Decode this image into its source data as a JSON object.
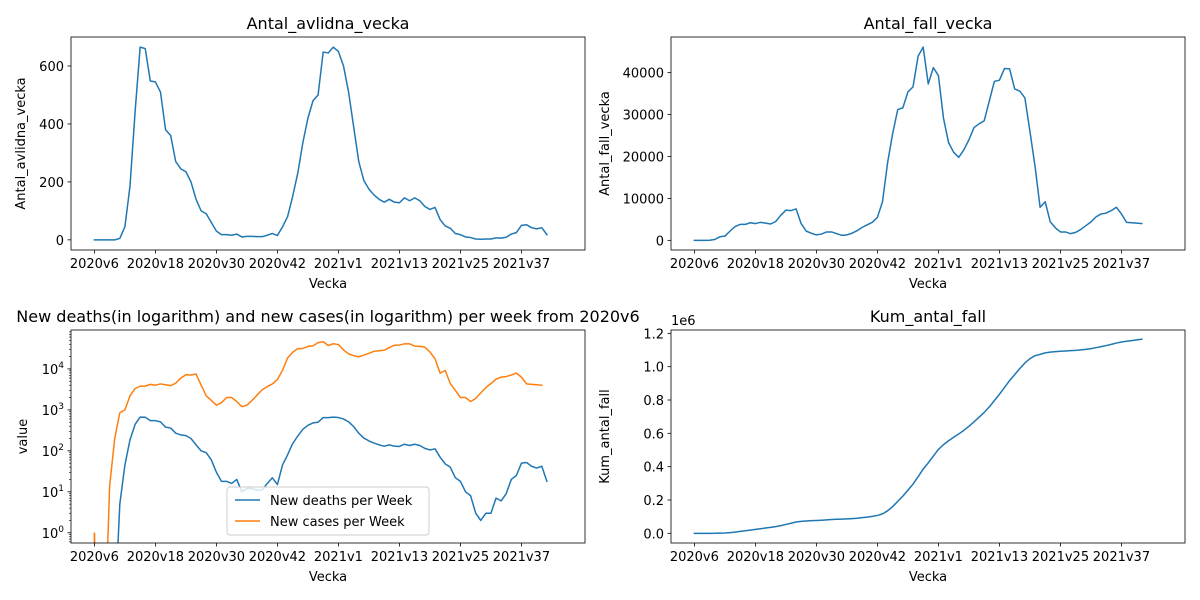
{
  "chart_data": [
    {
      "type": "line",
      "title": "Antal_avlidna_vecka",
      "xlabel": "Vecka",
      "ylabel": "Antal_avlidna_vecka",
      "x_tick_labels": [
        "2020v6",
        "2020v18",
        "2020v30",
        "2020v42",
        "2021v1",
        "2021v13",
        "2021v25",
        "2021v37"
      ],
      "x_ticks": [
        0,
        12,
        24,
        36,
        48,
        60,
        72,
        84
      ],
      "xlim": [
        -4.6,
        96.5
      ],
      "ylim": [
        -35,
        700
      ],
      "y_ticks": [
        0,
        200,
        400,
        600
      ],
      "y_tick_labels": [
        "0",
        "200",
        "400",
        "600"
      ],
      "log_y": false,
      "grid": false,
      "series": [
        {
          "color": "#1f77b4",
          "values": [
            0,
            0,
            0,
            0,
            0,
            5,
            45,
            185,
            440,
            665,
            660,
            548,
            545,
            510,
            380,
            360,
            270,
            245,
            235,
            200,
            140,
            100,
            90,
            60,
            30,
            18,
            18,
            16,
            20,
            10,
            12,
            12,
            11,
            11,
            16,
            22,
            15,
            45,
            80,
            150,
            230,
            335,
            420,
            480,
            500,
            648,
            645,
            665,
            650,
            600,
            510,
            390,
            270,
            205,
            175,
            155,
            140,
            130,
            140,
            130,
            128,
            145,
            135,
            145,
            135,
            115,
            105,
            112,
            70,
            48,
            40,
            22,
            18,
            10,
            8,
            3,
            2,
            3,
            3,
            7,
            6,
            9,
            20,
            25,
            50,
            52,
            42,
            38,
            42,
            18
          ]
        }
      ]
    },
    {
      "type": "line",
      "title": "Antal_fall_vecka",
      "xlabel": "Vecka",
      "ylabel": "Antal_fall_vecka",
      "x_tick_labels": [
        "2020v6",
        "2020v18",
        "2020v30",
        "2020v42",
        "2021v1",
        "2021v13",
        "2021v25",
        "2021v37"
      ],
      "x_ticks": [
        0,
        12,
        24,
        36,
        48,
        60,
        72,
        84
      ],
      "xlim": [
        -4.6,
        96.5
      ],
      "ylim": [
        -2300,
        48500
      ],
      "y_ticks": [
        0,
        10000,
        20000,
        30000,
        40000
      ],
      "y_tick_labels": [
        "0",
        "10000",
        "20000",
        "30000",
        "40000"
      ],
      "log_y": false,
      "grid": false,
      "series": [
        {
          "color": "#1f77b4",
          "values": [
            1,
            0,
            0,
            14,
            200,
            850,
            1000,
            2200,
            3300,
            3800,
            3800,
            4200,
            4000,
            4300,
            4100,
            3900,
            4500,
            6000,
            7200,
            7100,
            7500,
            4000,
            2200,
            1700,
            1300,
            1500,
            2000,
            2000,
            1600,
            1200,
            1300,
            1700,
            2300,
            3100,
            3700,
            4300,
            5500,
            9200,
            18500,
            25500,
            31200,
            31600,
            35400,
            36600,
            43900,
            46100,
            37300,
            41200,
            39300,
            29100,
            23300,
            21000,
            19800,
            21600,
            24000,
            26900,
            27800,
            28500,
            33200,
            37900,
            38200,
            41000,
            40900,
            36100,
            35600,
            34000,
            26000,
            17700,
            7900,
            9200,
            4400,
            3000,
            2000,
            2000,
            1600,
            1900,
            2600,
            3500,
            4400,
            5600,
            6300,
            6500,
            7100,
            7900,
            6300,
            4300,
            4200,
            4100,
            4000
          ]
        }
      ]
    },
    {
      "type": "line",
      "title": "New deaths(in logarithm) and new cases(in logarithm) per week from 2020v6",
      "xlabel": "Vecka",
      "ylabel": "value",
      "x_tick_labels": [
        "2020v6",
        "2020v18",
        "2020v30",
        "2020v42",
        "2021v1",
        "2021v13",
        "2021v25",
        "2021v37"
      ],
      "x_ticks": [
        0,
        12,
        24,
        36,
        48,
        60,
        72,
        84
      ],
      "xlim": [
        -4.6,
        96.5
      ],
      "ylim_log10": [
        -0.25,
        4.95
      ],
      "y_ticks_log10": [
        0,
        1,
        2,
        3,
        4
      ],
      "y_tick_labels": [
        "10^0",
        "10^1",
        "10^2",
        "10^3",
        "10^4"
      ],
      "log_y": true,
      "grid": false,
      "legend": "lower-center",
      "series": [
        {
          "name": "New deaths per Week",
          "color": "#1f77b4",
          "values": [
            0,
            0,
            0,
            0,
            0,
            5,
            45,
            185,
            440,
            665,
            660,
            548,
            545,
            510,
            380,
            360,
            270,
            245,
            235,
            200,
            140,
            100,
            90,
            60,
            30,
            18,
            18,
            16,
            20,
            10,
            12,
            12,
            11,
            11,
            16,
            22,
            15,
            45,
            80,
            150,
            230,
            335,
            420,
            480,
            500,
            648,
            645,
            665,
            650,
            600,
            510,
            390,
            270,
            205,
            175,
            155,
            140,
            130,
            140,
            130,
            128,
            145,
            135,
            145,
            135,
            115,
            105,
            112,
            70,
            48,
            40,
            22,
            18,
            10,
            8,
            3,
            2,
            3,
            3,
            7,
            6,
            9,
            20,
            25,
            50,
            52,
            42,
            38,
            42,
            18
          ]
        },
        {
          "name": "New cases per Week",
          "color": "#ff7f0e",
          "values": [
            1,
            0,
            0,
            14,
            200,
            850,
            1000,
            2200,
            3300,
            3800,
            3800,
            4200,
            4000,
            4300,
            4100,
            3900,
            4500,
            6000,
            7200,
            7100,
            7500,
            4000,
            2200,
            1700,
            1300,
            1500,
            2000,
            2000,
            1600,
            1200,
            1300,
            1700,
            2300,
            3100,
            3700,
            4300,
            5500,
            9200,
            18500,
            25500,
            31200,
            31600,
            35400,
            36600,
            43900,
            46100,
            37300,
            41200,
            39300,
            29100,
            23300,
            21000,
            19800,
            21600,
            24000,
            26900,
            27800,
            28500,
            33200,
            37900,
            38200,
            41000,
            40900,
            36100,
            35600,
            34000,
            26000,
            17700,
            7900,
            9200,
            4400,
            3000,
            2000,
            2000,
            1600,
            1900,
            2600,
            3500,
            4400,
            5600,
            6300,
            6500,
            7100,
            7900,
            6300,
            4300,
            4200,
            4100,
            4000
          ]
        }
      ]
    },
    {
      "type": "line",
      "title": "Kum_antal_fall",
      "xlabel": "Vecka",
      "ylabel": "Kum_antal_fall",
      "y_offset_label": "1e6",
      "x_tick_labels": [
        "2020v6",
        "2020v18",
        "2020v30",
        "2020v42",
        "2021v1",
        "2021v13",
        "2021v25",
        "2021v37"
      ],
      "x_ticks": [
        0,
        12,
        24,
        36,
        48,
        60,
        72,
        84
      ],
      "xlim": [
        -4.6,
        96.5
      ],
      "ylim": [
        -0.058,
        1.22
      ],
      "y_ticks": [
        0,
        0.2,
        0.4,
        0.6,
        0.8,
        1.0,
        1.2
      ],
      "y_tick_labels": [
        "0.0",
        "0.2",
        "0.4",
        "0.6",
        "0.8",
        "1.0",
        "1.2"
      ],
      "log_y": false,
      "grid": false,
      "series": [
        {
          "color": "#1f77b4",
          "values": [
            0,
            0,
            0,
            0,
            0.0002,
            0.0011,
            0.0021,
            0.0043,
            0.0076,
            0.0114,
            0.0152,
            0.0194,
            0.0234,
            0.0277,
            0.0318,
            0.0357,
            0.0402,
            0.0462,
            0.0534,
            0.0605,
            0.068,
            0.072,
            0.0742,
            0.0759,
            0.0772,
            0.0787,
            0.0807,
            0.0827,
            0.0843,
            0.0855,
            0.0868,
            0.0885,
            0.0908,
            0.0939,
            0.0976,
            0.1019,
            0.1074,
            0.1166,
            0.1351,
            0.1606,
            0.1918,
            0.2234,
            0.2588,
            0.2954,
            0.3393,
            0.3854,
            0.4227,
            0.4639,
            0.5032,
            0.5323,
            0.5556,
            0.5766,
            0.5964,
            0.618,
            0.642,
            0.6689,
            0.6967,
            0.7252,
            0.7584,
            0.7963,
            0.8345,
            0.8755,
            0.9164,
            0.9525,
            0.9881,
            1.0221,
            1.0481,
            1.0658,
            1.0737,
            1.0829,
            1.0873,
            1.0903,
            1.0923,
            1.0943,
            1.0959,
            1.0978,
            1.1004,
            1.1039,
            1.1083,
            1.1139,
            1.1202,
            1.1267,
            1.1338,
            1.1417,
            1.148,
            1.1523,
            1.1565,
            1.1606,
            1.1646
          ]
        }
      ]
    }
  ]
}
